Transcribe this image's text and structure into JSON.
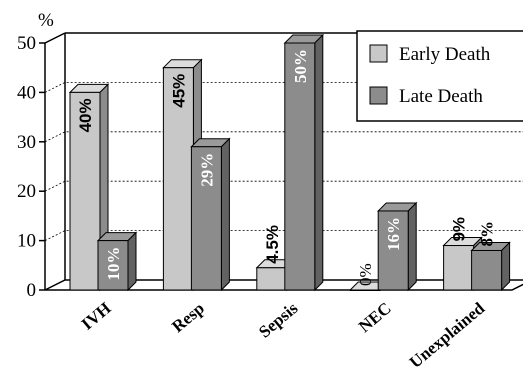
{
  "chart_data": {
    "type": "bar",
    "categories": [
      "IVH",
      "Resp",
      "Sepsis",
      "NEC",
      "Unexplained"
    ],
    "series": [
      {
        "name": "Early Death",
        "color": "#c8c8c8",
        "values": [
          40,
          45,
          4.5,
          0,
          9
        ],
        "labels": [
          "40%",
          "45%",
          "4.5%",
          "0%",
          "9%"
        ]
      },
      {
        "name": "Late Death",
        "color": "#8c8c8c",
        "values": [
          10,
          29,
          50,
          16,
          8
        ],
        "labels": [
          "10%",
          "29%",
          "50%",
          "16%",
          "8%"
        ]
      }
    ],
    "ylabel": "%",
    "ylim": [
      0,
      50
    ],
    "yticks": [
      "0",
      "10",
      "20",
      "30",
      "40",
      "50"
    ],
    "grid": true,
    "legend": "top-right"
  }
}
